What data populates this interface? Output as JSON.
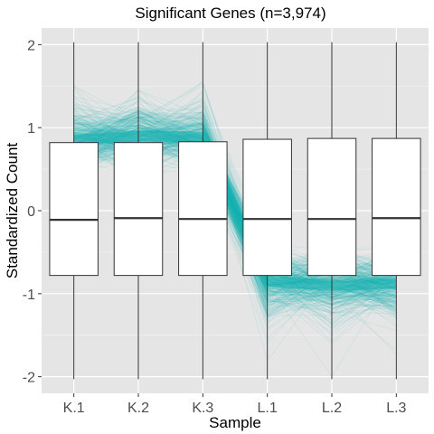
{
  "chart_data": {
    "type": "box",
    "title": "Significant Genes (n=3,974)",
    "xlabel": "Sample",
    "ylabel": "Standardized Count",
    "categories": [
      "K.1",
      "K.2",
      "K.3",
      "L.1",
      "L.2",
      "L.3"
    ],
    "ylim": [
      -2.2,
      2.2
    ],
    "yticks": [
      -2,
      -1,
      0,
      1,
      2
    ],
    "grid": true,
    "background": "#e5e5e5",
    "line_color": "#14b2b2",
    "boxes": [
      {
        "sample": "K.1",
        "min": -2.03,
        "q1": -0.78,
        "median": -0.11,
        "q3": 0.82,
        "max": 2.03
      },
      {
        "sample": "K.2",
        "min": -2.03,
        "q1": -0.78,
        "median": -0.09,
        "q3": 0.82,
        "max": 2.03
      },
      {
        "sample": "K.3",
        "min": -2.03,
        "q1": -0.78,
        "median": -0.1,
        "q3": 0.83,
        "max": 2.03
      },
      {
        "sample": "L.1",
        "min": -2.03,
        "q1": -0.78,
        "median": -0.1,
        "q3": 0.86,
        "max": 2.03
      },
      {
        "sample": "L.2",
        "min": -2.03,
        "q1": -0.78,
        "median": -0.1,
        "q3": 0.87,
        "max": 2.03
      },
      {
        "sample": "L.3",
        "min": -2.03,
        "q1": -0.78,
        "median": -0.09,
        "q3": 0.87,
        "max": 2.03
      }
    ],
    "profile_mean": [
      0.85,
      0.9,
      0.88,
      -0.85,
      -0.9,
      -0.88
    ],
    "profile_range": [
      [
        0.35,
        1.5
      ],
      [
        0.4,
        1.45
      ],
      [
        0.45,
        1.55
      ],
      [
        -2.0,
        -0.4
      ],
      [
        -2.0,
        -0.45
      ],
      [
        -2.0,
        -0.45
      ]
    ]
  }
}
